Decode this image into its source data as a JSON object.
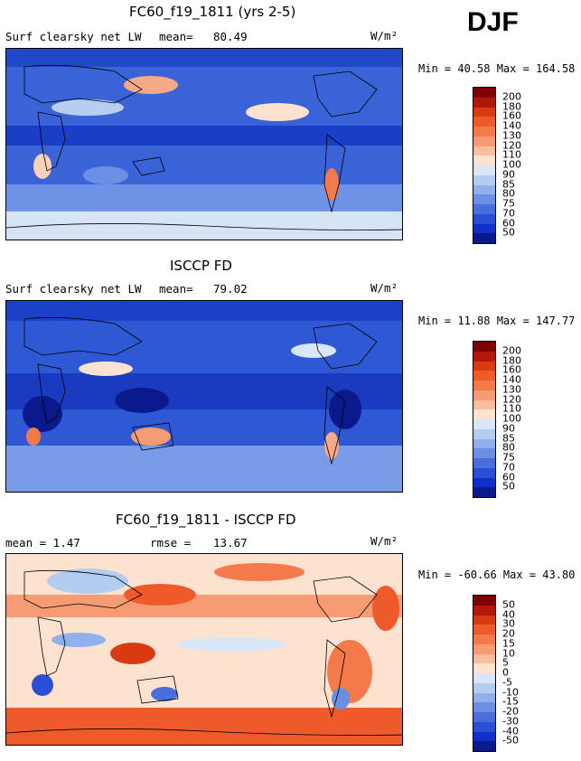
{
  "season": "DJF",
  "units": "W/m²",
  "panels": [
    {
      "title": "FC60_f19_1811 (yrs 2-5)",
      "left_label": "Surf clearsky net LW",
      "stat_label": "mean=",
      "stat_value": "80.49",
      "minmax": "Min =  40.58 Max = 164.58",
      "colorbar_ticks": [
        "200",
        "180",
        "160",
        "140",
        "130",
        "120",
        "110",
        "100",
        "90",
        "85",
        "80",
        "75",
        "70",
        "60",
        "50"
      ]
    },
    {
      "title": "ISCCP FD",
      "left_label": "Surf clearsky net LW",
      "stat_label": "mean=",
      "stat_value": "79.02",
      "minmax": "Min =  11.88 Max = 147.77",
      "colorbar_ticks": [
        "200",
        "180",
        "160",
        "140",
        "130",
        "120",
        "110",
        "100",
        "90",
        "85",
        "80",
        "75",
        "70",
        "60",
        "50"
      ]
    },
    {
      "title": "FC60_f19_1811 - ISCCP FD",
      "left_label": "mean =   1.47",
      "stat_label": "rmse =",
      "stat_value": "13.67",
      "minmax": "Min = -60.66 Max =  43.80",
      "colorbar_ticks": [
        "50",
        "40",
        "30",
        "20",
        "15",
        "10",
        "5",
        "0",
        "-5",
        "-10",
        "-15",
        "-20",
        "-30",
        "-40",
        "-50"
      ]
    }
  ],
  "colorbar_colors": [
    "#7f0000",
    "#b2170b",
    "#d93a12",
    "#ee5a2a",
    "#f47a4c",
    "#f79b74",
    "#fabd9e",
    "#fde2cf",
    "#d8e6f7",
    "#b4ccf0",
    "#8fb0ea",
    "#6a8fe3",
    "#4a6fdc",
    "#2a4fd6",
    "#1030cc",
    "#0a1a8c"
  ]
}
